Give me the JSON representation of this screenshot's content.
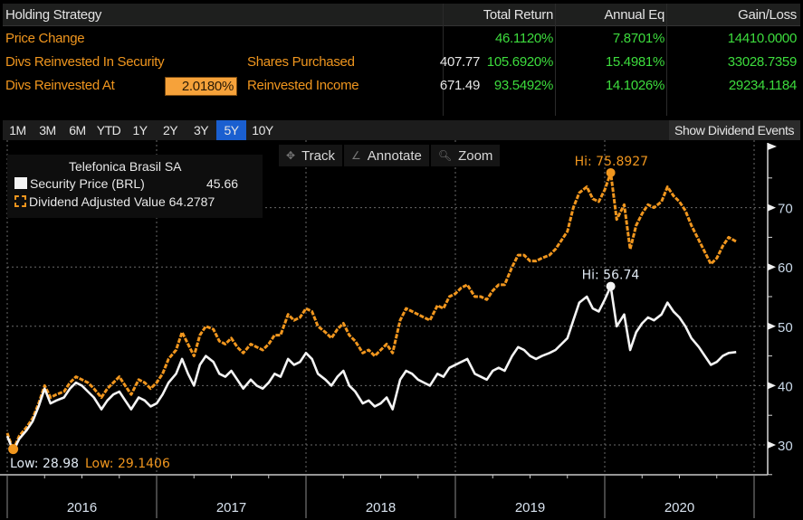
{
  "summary": {
    "header": {
      "title": "Holding Strategy",
      "total_return": "Total Return",
      "annual_eq": "Annual Eq",
      "gain_loss": "Gain/Loss"
    },
    "rows": [
      {
        "label": "Price Change",
        "sub_label": "",
        "sub_value": "",
        "total_return": "46.1120%",
        "annual_eq": "7.8701%",
        "gain_loss": "14410.0000"
      },
      {
        "label": "Divs Reinvested In Security",
        "sub_label": "Shares Purchased",
        "sub_value": "407.77",
        "total_return": "105.6920%",
        "annual_eq": "15.4981%",
        "gain_loss": "33028.7359"
      },
      {
        "label": "Divs Reinvested At",
        "rate": "2.0180%",
        "sub_label": "Reinvested Income",
        "sub_value": "671.49",
        "total_return": "93.5492%",
        "annual_eq": "14.1026%",
        "gain_loss": "29234.1184"
      }
    ]
  },
  "tabs": {
    "items": [
      "1M",
      "3M",
      "6M",
      "YTD",
      "1Y",
      "2Y",
      "3Y",
      "5Y",
      "10Y"
    ],
    "active": "5Y",
    "show_dividend_events": "Show Dividend Events"
  },
  "toolbar": {
    "track": "Track",
    "annotate": "Annotate",
    "zoom": "Zoom"
  },
  "legend": {
    "title": "Telefonica Brasil SA",
    "series1_label": "Security Price (BRL)",
    "series1_value": "45.66",
    "series2_label": "Dividend Adjusted Value",
    "series2_value": "64.2787"
  },
  "colors": {
    "price": "#f4f4f4",
    "dividend_adjusted": "#f0961e",
    "positive": "#3ddc3d",
    "active_tab": "#1a5fd0"
  },
  "chart_data": {
    "type": "line",
    "title": "Telefonica Brasil SA",
    "xlabel": "",
    "ylabel": "",
    "ylim": [
      25,
      78
    ],
    "yticks": [
      30,
      40,
      50,
      60,
      70
    ],
    "x_tick_labels": [
      "2016",
      "2017",
      "2018",
      "2019",
      "2020"
    ],
    "xlim": [
      2016.0,
      2021.0
    ],
    "grid": true,
    "legend_position": "top-left",
    "x": [
      2016.0,
      2016.04,
      2016.08,
      2016.13,
      2016.17,
      2016.21,
      2016.25,
      2016.29,
      2016.33,
      2016.38,
      2016.42,
      2016.46,
      2016.5,
      2016.54,
      2016.58,
      2016.63,
      2016.67,
      2016.71,
      2016.75,
      2016.79,
      2016.83,
      2016.88,
      2016.92,
      2016.96,
      2017.0,
      2017.04,
      2017.08,
      2017.13,
      2017.17,
      2017.21,
      2017.25,
      2017.29,
      2017.33,
      2017.38,
      2017.42,
      2017.46,
      2017.5,
      2017.54,
      2017.58,
      2017.63,
      2017.67,
      2017.71,
      2017.75,
      2017.79,
      2017.83,
      2017.88,
      2017.92,
      2017.96,
      2018.0,
      2018.04,
      2018.08,
      2018.13,
      2018.17,
      2018.21,
      2018.25,
      2018.29,
      2018.33,
      2018.38,
      2018.42,
      2018.46,
      2018.5,
      2018.54,
      2018.58,
      2018.63,
      2018.67,
      2018.71,
      2018.75,
      2018.79,
      2018.83,
      2018.88,
      2018.92,
      2018.96,
      2019.0,
      2019.04,
      2019.08,
      2019.13,
      2019.17,
      2019.21,
      2019.25,
      2019.29,
      2019.33,
      2019.38,
      2019.42,
      2019.46,
      2019.5,
      2019.54,
      2019.58,
      2019.63,
      2019.67,
      2019.71,
      2019.75,
      2019.79,
      2019.83,
      2019.88,
      2019.92,
      2019.96,
      2020.0,
      2020.04,
      2020.08,
      2020.13,
      2020.17,
      2020.21,
      2020.25,
      2020.29,
      2020.33,
      2020.38,
      2020.42,
      2020.46,
      2020.5,
      2020.54,
      2020.58,
      2020.63,
      2020.67,
      2020.71,
      2020.75,
      2020.79,
      2020.83,
      2020.88
    ],
    "series": [
      {
        "name": "Security Price (BRL)",
        "color": "#f4f4f4",
        "last": 45.66,
        "high": 56.74,
        "low": 28.98,
        "values": [
          31.5,
          28.98,
          31.0,
          32.5,
          34.0,
          36.5,
          39.5,
          37.0,
          37.5,
          38.0,
          39.5,
          40.5,
          40.0,
          39.0,
          38.0,
          36.0,
          37.5,
          38.5,
          39.0,
          37.5,
          36.0,
          38.0,
          37.5,
          36.5,
          37.0,
          38.5,
          40.5,
          42.0,
          44.5,
          42.0,
          40.0,
          43.5,
          45.0,
          44.0,
          42.0,
          41.5,
          42.5,
          41.0,
          39.5,
          41.0,
          40.0,
          39.5,
          40.5,
          42.0,
          41.5,
          44.5,
          43.5,
          44.0,
          45.5,
          44.5,
          42.0,
          41.0,
          40.0,
          41.5,
          42.5,
          40.0,
          39.0,
          37.0,
          37.5,
          36.5,
          37.0,
          38.0,
          36.0,
          41.0,
          42.5,
          42.0,
          41.0,
          40.5,
          40.0,
          42.0,
          41.5,
          43.0,
          43.5,
          44.0,
          44.5,
          42.0,
          41.5,
          41.0,
          42.5,
          43.0,
          42.5,
          45.0,
          46.5,
          46.0,
          45.0,
          44.5,
          45.0,
          45.5,
          46.0,
          47.0,
          48.0,
          51.0,
          54.0,
          55.0,
          53.0,
          52.5,
          54.5,
          56.74,
          50.0,
          52.0,
          46.0,
          49.0,
          50.5,
          51.5,
          51.0,
          52.0,
          54.0,
          52.5,
          51.5,
          50.0,
          48.0,
          46.5,
          45.0,
          43.5,
          44.0,
          45.0,
          45.5,
          45.66
        ]
      },
      {
        "name": "Dividend Adjusted Value",
        "color": "#f0961e",
        "last": 64.2787,
        "high": 75.8927,
        "low": 29.1406,
        "values": [
          32.0,
          29.14,
          31.5,
          33.0,
          34.5,
          37.0,
          40.0,
          38.0,
          38.5,
          39.0,
          40.5,
          41.5,
          41.0,
          40.5,
          39.5,
          38.0,
          39.5,
          40.5,
          41.5,
          40.0,
          38.5,
          41.0,
          40.5,
          39.5,
          40.5,
          42.0,
          44.5,
          46.0,
          49.0,
          47.0,
          45.0,
          48.5,
          50.0,
          49.5,
          47.5,
          47.0,
          48.0,
          46.5,
          45.5,
          47.0,
          46.5,
          46.0,
          47.0,
          48.5,
          48.5,
          52.0,
          51.0,
          51.5,
          53.0,
          52.5,
          50.0,
          49.0,
          48.0,
          49.5,
          50.5,
          48.5,
          47.5,
          45.5,
          46.0,
          45.0,
          46.0,
          47.0,
          45.5,
          51.0,
          53.0,
          52.5,
          52.0,
          51.5,
          51.0,
          53.5,
          53.0,
          55.0,
          55.5,
          56.5,
          57.0,
          55.0,
          55.0,
          54.5,
          56.0,
          57.0,
          57.0,
          60.0,
          62.0,
          62.0,
          61.0,
          61.0,
          61.5,
          62.0,
          63.0,
          64.5,
          66.0,
          70.0,
          72.5,
          73.5,
          71.5,
          71.0,
          73.0,
          75.89,
          68.0,
          70.5,
          63.0,
          67.0,
          69.0,
          70.5,
          70.0,
          71.0,
          73.5,
          72.0,
          71.0,
          69.5,
          67.0,
          64.5,
          62.5,
          60.5,
          61.5,
          63.5,
          65.0,
          64.28
        ]
      }
    ],
    "annotations": [
      {
        "series": "Dividend Adjusted Value",
        "text": "Hi: 75.8927",
        "type": "high"
      },
      {
        "series": "Security Price (BRL)",
        "text": "Hi: 56.74",
        "type": "high"
      },
      {
        "series": "Security Price (BRL)",
        "text": "Low: 28.98",
        "type": "low"
      },
      {
        "series": "Dividend Adjusted Value",
        "text": "Low: 29.1406",
        "type": "low"
      }
    ]
  }
}
